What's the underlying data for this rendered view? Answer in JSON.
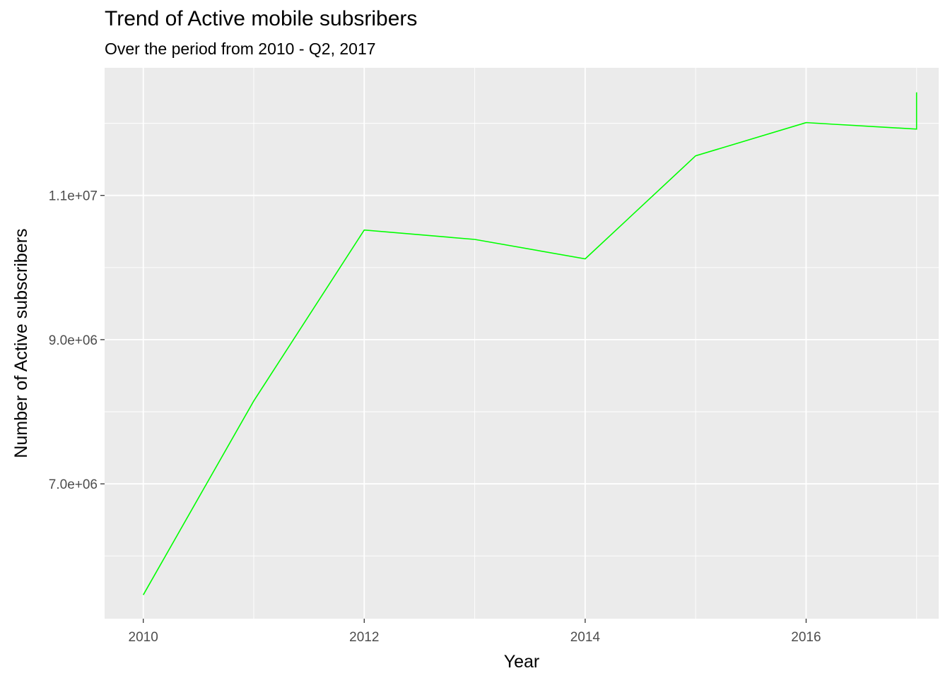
{
  "chart_data": {
    "type": "line",
    "title": "Trend of Active mobile subsribers",
    "subtitle": "Over the period from 2010 - Q2, 2017",
    "xlabel": "Year",
    "ylabel": "Number of Active subscribers",
    "x_ticks": [
      2010,
      2012,
      2014,
      2016
    ],
    "y_ticks": [
      7000000,
      9000000,
      11000000
    ],
    "y_tick_labels": [
      "7.0e+06",
      "9.0e+06",
      "1.1e+07"
    ],
    "xlim": [
      2009.65,
      2017.2
    ],
    "ylim": [
      5130000,
      12770000
    ],
    "grid": true,
    "series": [
      {
        "color": "#00ff00",
        "points": [
          {
            "x": 2010,
            "y": 5460000
          },
          {
            "x": 2011,
            "y": 8150000
          },
          {
            "x": 2012,
            "y": 10520000
          },
          {
            "x": 2013,
            "y": 10390000
          },
          {
            "x": 2014,
            "y": 10120000
          },
          {
            "x": 2015,
            "y": 11550000
          },
          {
            "x": 2016,
            "y": 12010000
          },
          {
            "x": 2017,
            "y": 11920000
          },
          {
            "x": 2017,
            "y": 12430000
          }
        ]
      }
    ]
  }
}
